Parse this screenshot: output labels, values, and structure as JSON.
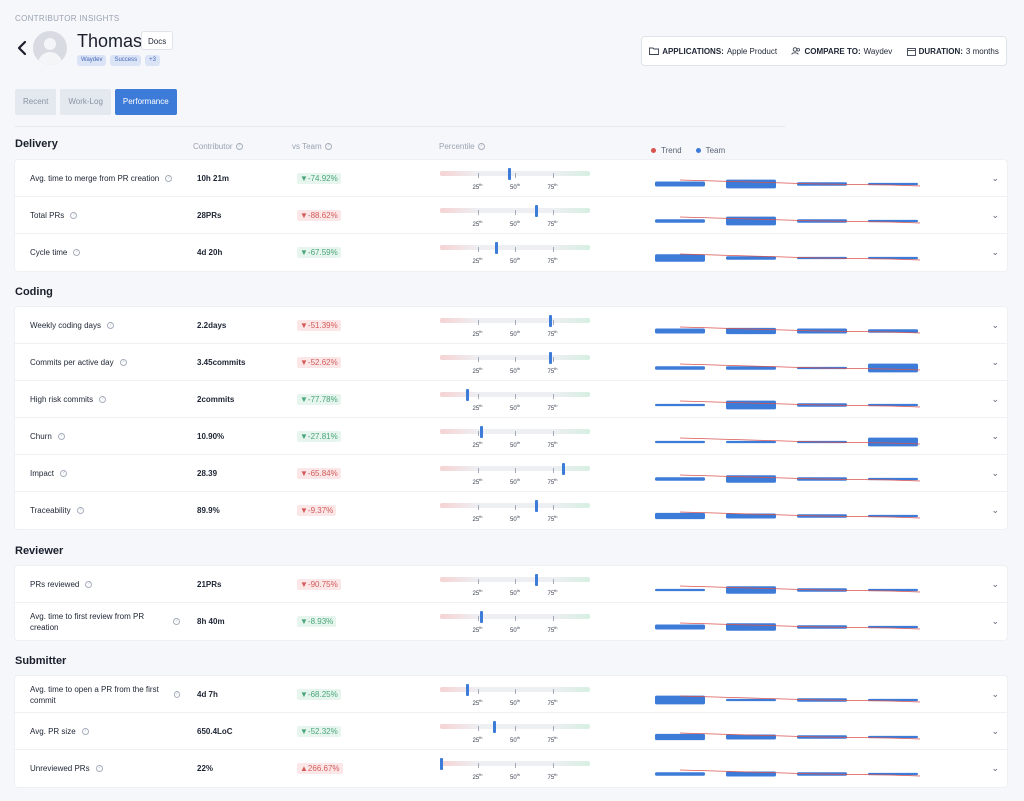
{
  "header": {
    "breadcrumb": "CONTRIBUTOR INSIGHTS",
    "name": "Thomas",
    "docs_label": "Docs",
    "tags": [
      "Waydev",
      "Success",
      "+3"
    ]
  },
  "filters": {
    "applications_label": "APPLICATIONS:",
    "applications_value": "Apple Product",
    "compare_label": "COMPARE TO:",
    "compare_value": "Waydev",
    "duration_label": "DURATION:",
    "duration_value": "3 months"
  },
  "tabs": [
    "Recent",
    "Work-Log",
    "Performance"
  ],
  "columns": {
    "contributor": "Contributor",
    "vs_team": "vs Team",
    "percentile": "Percentile"
  },
  "legend": {
    "trend": "Trend",
    "team": "Team",
    "trend_color": "#d9534f",
    "team_color": "#3d7bd8"
  },
  "percentile_ticks": [
    {
      "num": "25",
      "suffix": "th"
    },
    {
      "num": "50",
      "suffix": "th"
    },
    {
      "num": "75",
      "suffix": "th"
    }
  ],
  "sections": [
    {
      "title": "Delivery",
      "rows": [
        {
          "label": "Avg. time to merge from PR creation",
          "value": "10h 21m",
          "delta": "▼-74.92%",
          "sentiment": "good",
          "percentile": 0.46
        },
        {
          "label": "Total PRs",
          "value": "28PRs",
          "delta": "▼-88.62%",
          "sentiment": "bad",
          "percentile": 0.64
        },
        {
          "label": "Cycle time",
          "value": "4d 20h",
          "delta": "▼-67.59%",
          "sentiment": "good",
          "percentile": 0.37
        }
      ]
    },
    {
      "title": "Coding",
      "rows": [
        {
          "label": "Weekly coding days",
          "value": "2.2days",
          "delta": "▼-51.39%",
          "sentiment": "bad",
          "percentile": 0.73
        },
        {
          "label": "Commits per active day",
          "value": "3.45commits",
          "delta": "▼-52.62%",
          "sentiment": "bad",
          "percentile": 0.73
        },
        {
          "label": "High risk commits",
          "value": "2commits",
          "delta": "▼-77.78%",
          "sentiment": "good",
          "percentile": 0.18
        },
        {
          "label": "Churn",
          "value": "10.90%",
          "delta": "▼-27.81%",
          "sentiment": "good",
          "percentile": 0.27
        },
        {
          "label": "Impact",
          "value": "28.39",
          "delta": "▼-65.84%",
          "sentiment": "bad",
          "percentile": 0.82
        },
        {
          "label": "Traceability",
          "value": "89.9%",
          "delta": "▼-9.37%",
          "sentiment": "bad",
          "percentile": 0.64
        }
      ]
    },
    {
      "title": "Reviewer",
      "rows": [
        {
          "label": "PRs reviewed",
          "value": "21PRs",
          "delta": "▼-90.75%",
          "sentiment": "bad",
          "percentile": 0.64
        },
        {
          "label": "Avg. time to first review from PR creation",
          "value": "8h 40m",
          "delta": "▼-8.93%",
          "sentiment": "good",
          "percentile": 0.27
        }
      ]
    },
    {
      "title": "Submitter",
      "rows": [
        {
          "label": "Avg. time to open a PR from the first commit",
          "value": "4d 7h",
          "delta": "▼-68.25%",
          "sentiment": "good",
          "percentile": 0.18
        },
        {
          "label": "Avg. PR size",
          "value": "650.4LoC",
          "delta": "▼-52.32%",
          "sentiment": "good",
          "percentile": 0.36
        },
        {
          "label": "Unreviewed PRs",
          "value": "22%",
          "delta": "▲266.67%",
          "sentiment": "bad",
          "percentile": 0.0
        }
      ]
    }
  ]
}
